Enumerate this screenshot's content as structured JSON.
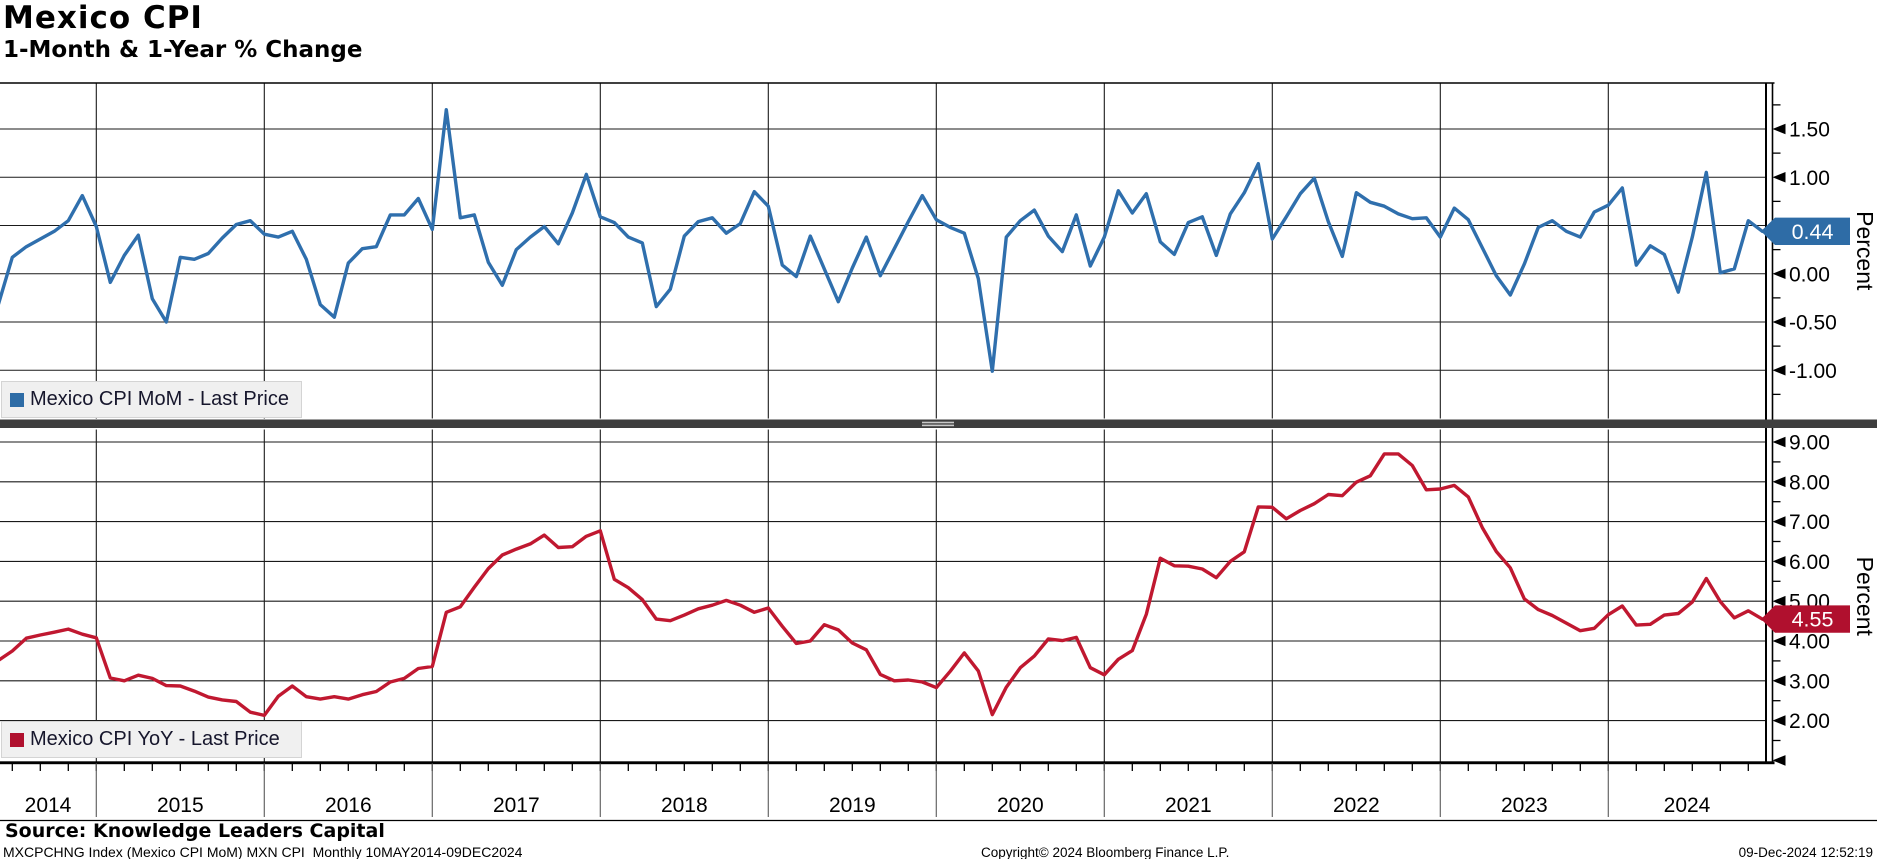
{
  "header": {
    "title": "Mexico CPI",
    "subtitle": "1-Month & 1-Year % Change"
  },
  "legends": {
    "top": "Mexico CPI MoM - Last Price",
    "bottom": "Mexico CPI YoY - Last Price"
  },
  "footer": {
    "source": "Source: Knowledge Leaders Capital",
    "ticker_line": "MXCPCHNG Index (Mexico CPI MoM) MXN CPI  Monthly 10MAY2014-09DEC2024",
    "copyright": "Copyright© 2024 Bloomberg Finance L.P.",
    "timestamp": "09-Dec-2024 12:52:19"
  },
  "colors": {
    "mom_line": "#2f6fad",
    "mom_badge": "#2e6ca6",
    "yoy_line": "#c01830",
    "yoy_badge": "#b0102e",
    "grid": "#1a1a1a",
    "axis": "#000000",
    "divider": "#3e3e3e",
    "divider_grip": "#c9c9c9",
    "legend_bg": "#f0f0f0",
    "badge_text": "#ffffff",
    "year_separator": "#666666"
  },
  "chart_data": {
    "type": "line",
    "title": "Mexico CPI",
    "subtitle": "1-Month & 1-Year % Change",
    "grid": true,
    "legend_position": "bottom-left-of-each-panel",
    "x_axis": {
      "start": "2014-05",
      "end": "2024-11",
      "frequency": "monthly",
      "year_labels": [
        2014,
        2015,
        2016,
        2017,
        2018,
        2019,
        2020,
        2021,
        2022,
        2023,
        2024
      ]
    },
    "panels": [
      {
        "name": "mom",
        "ylabel": "Percent",
        "ylim": [
          -1.5,
          1.98
        ],
        "yticks": [
          1.5,
          1.0,
          0.5,
          0.0,
          -0.5,
          -1.0
        ],
        "ytick_minor": [
          1.75,
          1.25,
          0.75,
          0.25,
          -0.25,
          -0.75,
          -1.25
        ],
        "extra_arrow_ticks": [],
        "last_price": 0.44,
        "last_price_label": "0.44"
      },
      {
        "name": "yoy",
        "ylabel": "Percent",
        "ylim": [
          0.92,
          9.33
        ],
        "yticks": [
          9.0,
          8.0,
          7.0,
          6.0,
          5.0,
          4.0,
          3.0,
          2.0
        ],
        "ytick_minor": [
          8.5,
          7.5,
          6.5,
          5.5,
          4.5,
          3.5,
          2.5,
          1.5
        ],
        "extra_arrow_ticks": [
          1.0
        ],
        "last_price": 4.55,
        "last_price_label": "4.55"
      }
    ],
    "series": [
      {
        "name": "Mexico CPI MoM",
        "panel": 0,
        "start_year": 2014,
        "start_month": 5,
        "values": [
          -0.32,
          0.17,
          0.28,
          0.36,
          0.44,
          0.55,
          0.81,
          0.49,
          -0.09,
          0.19,
          0.4,
          -0.26,
          -0.5,
          0.17,
          0.15,
          0.21,
          0.37,
          0.51,
          0.55,
          0.41,
          0.38,
          0.44,
          0.15,
          -0.32,
          -0.45,
          0.11,
          0.26,
          0.28,
          0.61,
          0.61,
          0.78,
          0.46,
          1.7,
          0.58,
          0.61,
          0.12,
          -0.12,
          0.25,
          0.38,
          0.49,
          0.31,
          0.63,
          1.03,
          0.59,
          0.53,
          0.38,
          0.32,
          -0.34,
          -0.16,
          0.39,
          0.54,
          0.58,
          0.42,
          0.52,
          0.85,
          0.7,
          0.09,
          -0.03,
          0.39,
          0.05,
          -0.29,
          0.06,
          0.38,
          -0.02,
          0.26,
          0.54,
          0.81,
          0.56,
          0.48,
          0.42,
          -0.05,
          -1.01,
          0.38,
          0.55,
          0.66,
          0.39,
          0.23,
          0.61,
          0.08,
          0.38,
          0.86,
          0.63,
          0.83,
          0.33,
          0.2,
          0.53,
          0.59,
          0.19,
          0.62,
          0.84,
          1.14,
          0.36,
          0.59,
          0.83,
          0.99,
          0.54,
          0.18,
          0.84,
          0.74,
          0.7,
          0.62,
          0.57,
          0.58,
          0.38,
          0.68,
          0.56,
          0.27,
          -0.02,
          -0.22,
          0.1,
          0.48,
          0.55,
          0.44,
          0.38,
          0.64,
          0.71,
          0.89,
          0.09,
          0.29,
          0.2,
          -0.19,
          0.38,
          1.05,
          0.01,
          0.05,
          0.55,
          0.44
        ]
      },
      {
        "name": "Mexico CPI YoY",
        "panel": 1,
        "start_year": 2014,
        "start_month": 5,
        "values": [
          3.51,
          3.75,
          4.07,
          4.15,
          4.22,
          4.3,
          4.17,
          4.08,
          3.07,
          3.0,
          3.14,
          3.06,
          2.88,
          2.87,
          2.74,
          2.59,
          2.52,
          2.48,
          2.21,
          2.13,
          2.61,
          2.87,
          2.6,
          2.54,
          2.6,
          2.54,
          2.65,
          2.73,
          2.97,
          3.06,
          3.31,
          3.36,
          4.72,
          4.86,
          5.35,
          5.82,
          6.16,
          6.31,
          6.44,
          6.66,
          6.35,
          6.37,
          6.63,
          6.77,
          5.55,
          5.34,
          5.04,
          4.55,
          4.51,
          4.65,
          4.81,
          4.9,
          5.02,
          4.9,
          4.72,
          4.83,
          4.37,
          3.94,
          4.0,
          4.41,
          4.28,
          3.95,
          3.78,
          3.16,
          3.0,
          3.02,
          2.97,
          2.83,
          3.24,
          3.7,
          3.25,
          2.15,
          2.84,
          3.33,
          3.62,
          4.05,
          4.01,
          4.09,
          3.33,
          3.15,
          3.54,
          3.76,
          4.67,
          6.08,
          5.89,
          5.88,
          5.81,
          5.59,
          6.0,
          6.24,
          7.37,
          7.36,
          7.07,
          7.28,
          7.45,
          7.68,
          7.65,
          7.99,
          8.15,
          8.7,
          8.7,
          8.41,
          7.8,
          7.82,
          7.91,
          7.62,
          6.85,
          6.25,
          5.84,
          5.06,
          4.79,
          4.64,
          4.45,
          4.26,
          4.32,
          4.66,
          4.88,
          4.4,
          4.42,
          4.65,
          4.69,
          4.98,
          5.57,
          4.99,
          4.58,
          4.76,
          4.55
        ]
      }
    ]
  }
}
